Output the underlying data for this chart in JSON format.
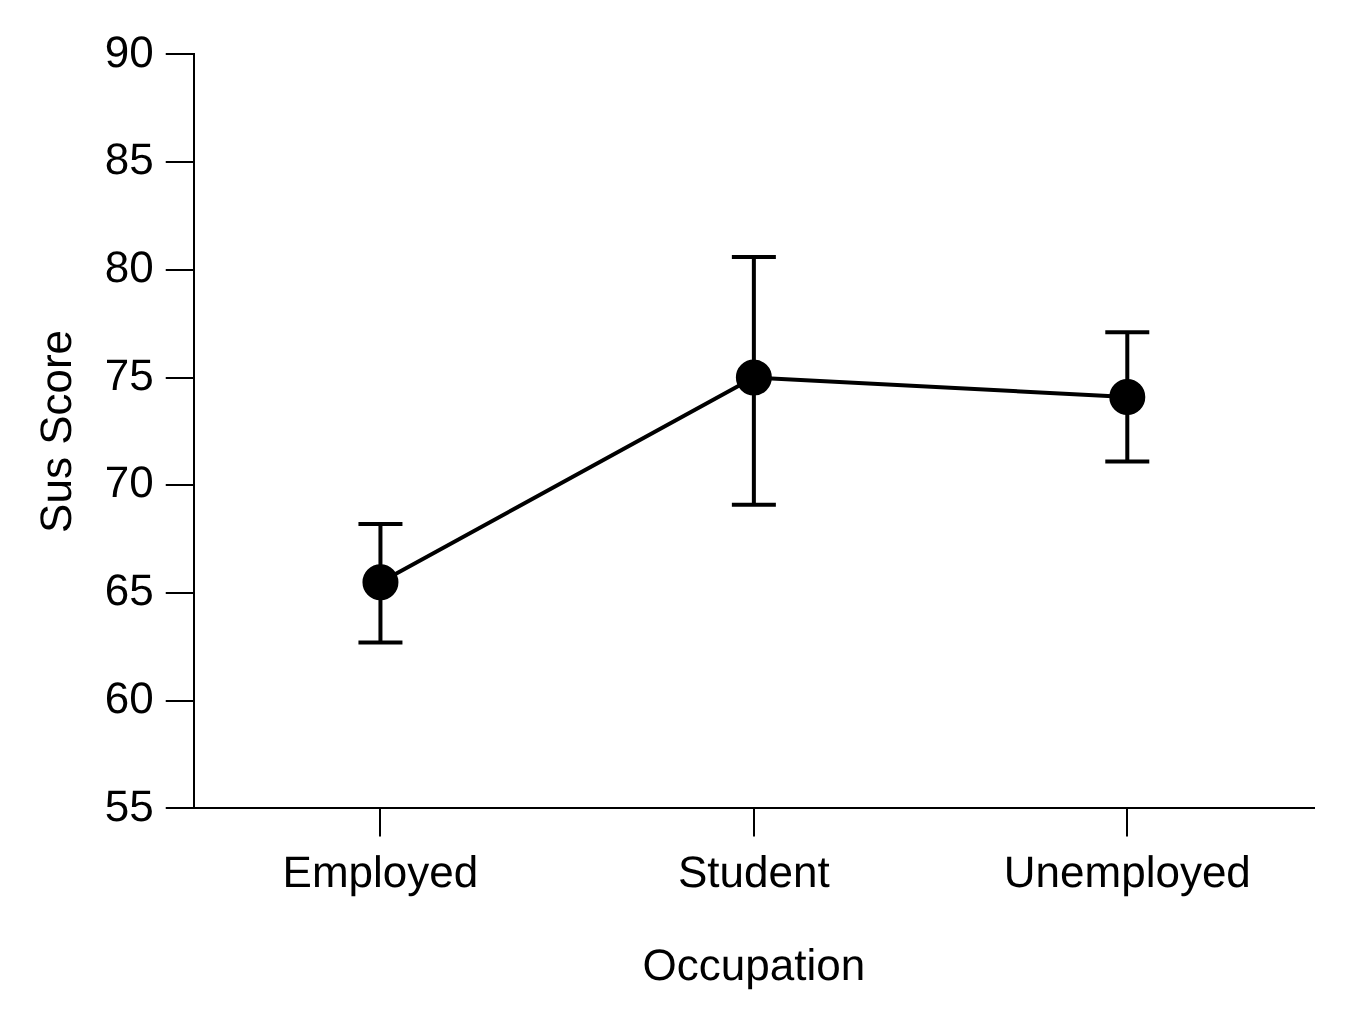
{
  "chart_data": {
    "type": "line",
    "xlabel": "Occupation",
    "ylabel": "Sus Score",
    "categories": [
      "Employed",
      "Student",
      "Unemployed"
    ],
    "series": [
      {
        "color": "#000000",
        "values": [
          65.5,
          75.0,
          74.1
        ],
        "errors": [
          [
            62.7,
            68.2
          ],
          [
            69.1,
            80.6
          ],
          [
            71.1,
            77.1
          ]
        ]
      }
    ],
    "ylim": [
      55,
      90
    ],
    "yticks": [
      55,
      60,
      65,
      70,
      75,
      80,
      85,
      90
    ],
    "grid": false,
    "legend": false,
    "marker": "circle",
    "line_style": "solid"
  }
}
